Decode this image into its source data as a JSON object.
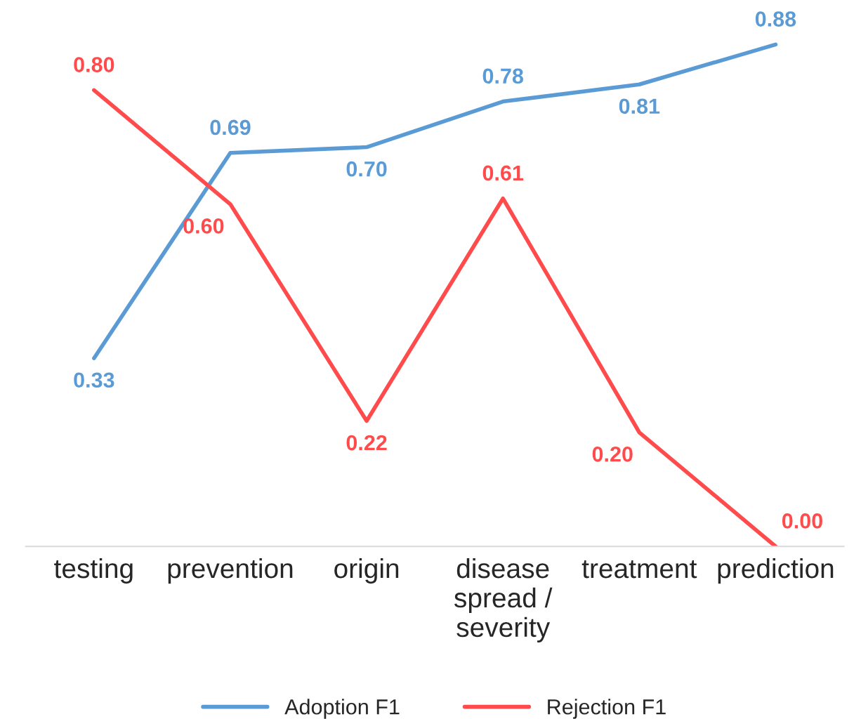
{
  "chart_data": {
    "type": "line",
    "categories": [
      "testing",
      "prevention",
      "origin",
      "disease\nspread /\nseverity",
      "treatment",
      "prediction"
    ],
    "series": [
      {
        "name": "Adoption F1",
        "color": "#5b9bd5",
        "values": [
          0.33,
          0.69,
          0.7,
          0.78,
          0.81,
          0.88
        ],
        "value_labels": [
          "0.33",
          "0.69",
          "0.70",
          "0.78",
          "0.81",
          "0.88"
        ]
      },
      {
        "name": "Rejection F1",
        "color": "#ff4b4b",
        "values": [
          0.8,
          0.6,
          0.22,
          0.61,
          0.2,
          0.0
        ],
        "value_labels": [
          "0.80",
          "0.60",
          "0.22",
          "0.61",
          "0.20",
          "0.00"
        ]
      }
    ],
    "legend": "bottom",
    "grid": false,
    "line_style": "solid"
  }
}
